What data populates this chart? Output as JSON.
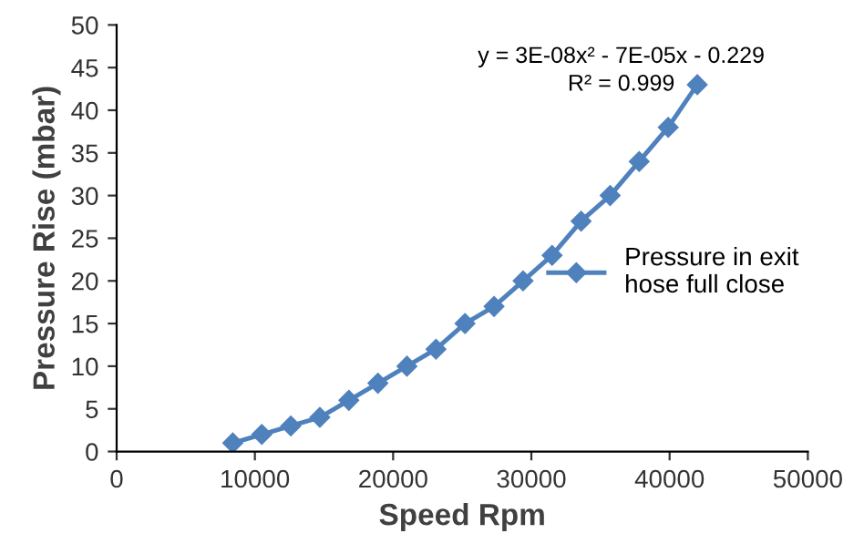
{
  "chart_data": {
    "type": "line",
    "xlabel": "Speed Rpm",
    "ylabel": "Pressure Rise (mbar)",
    "x": [
      8400,
      10500,
      12600,
      14700,
      16800,
      18900,
      21000,
      23100,
      25200,
      27300,
      29400,
      31500,
      33600,
      35700,
      37800,
      39900,
      42000
    ],
    "series": [
      {
        "name": "Pressure in exit hose full close",
        "color": "#4f81bd",
        "values": [
          1,
          2,
          3,
          4,
          6,
          8,
          10,
          12,
          15,
          17,
          20,
          23,
          27,
          30,
          34,
          38,
          43
        ]
      }
    ],
    "xlim": [
      0,
      50000
    ],
    "xticks": [
      0,
      10000,
      20000,
      30000,
      40000,
      50000
    ],
    "ylim": [
      0,
      50
    ],
    "yticks": [
      0,
      5,
      10,
      15,
      20,
      25,
      30,
      35,
      40,
      45,
      50
    ],
    "annotations": [
      "y = 3E-08x² - 7E-05x - 0.229\nR² = 0.999"
    ],
    "marker": "diamond",
    "line_style": "solid",
    "grid": false,
    "legend": "right"
  }
}
